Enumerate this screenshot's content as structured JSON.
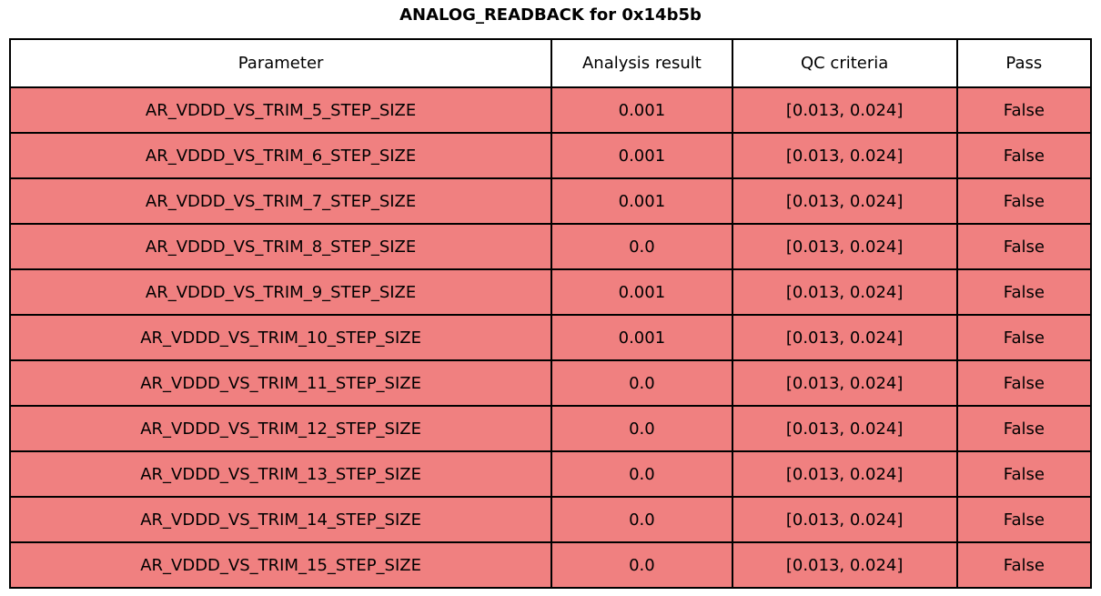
{
  "title": "ANALOG_READBACK for 0x14b5b",
  "table": {
    "columns": [
      "Parameter",
      "Analysis result",
      "QC criteria",
      "Pass"
    ],
    "rows": [
      {
        "parameter": "AR_VDDD_VS_TRIM_5_STEP_SIZE",
        "result": "0.001",
        "criteria": "[0.013, 0.024]",
        "pass": "False"
      },
      {
        "parameter": "AR_VDDD_VS_TRIM_6_STEP_SIZE",
        "result": "0.001",
        "criteria": "[0.013, 0.024]",
        "pass": "False"
      },
      {
        "parameter": "AR_VDDD_VS_TRIM_7_STEP_SIZE",
        "result": "0.001",
        "criteria": "[0.013, 0.024]",
        "pass": "False"
      },
      {
        "parameter": "AR_VDDD_VS_TRIM_8_STEP_SIZE",
        "result": "0.0",
        "criteria": "[0.013, 0.024]",
        "pass": "False"
      },
      {
        "parameter": "AR_VDDD_VS_TRIM_9_STEP_SIZE",
        "result": "0.001",
        "criteria": "[0.013, 0.024]",
        "pass": "False"
      },
      {
        "parameter": "AR_VDDD_VS_TRIM_10_STEP_SIZE",
        "result": "0.001",
        "criteria": "[0.013, 0.024]",
        "pass": "False"
      },
      {
        "parameter": "AR_VDDD_VS_TRIM_11_STEP_SIZE",
        "result": "0.0",
        "criteria": "[0.013, 0.024]",
        "pass": "False"
      },
      {
        "parameter": "AR_VDDD_VS_TRIM_12_STEP_SIZE",
        "result": "0.0",
        "criteria": "[0.013, 0.024]",
        "pass": "False"
      },
      {
        "parameter": "AR_VDDD_VS_TRIM_13_STEP_SIZE",
        "result": "0.0",
        "criteria": "[0.013, 0.024]",
        "pass": "False"
      },
      {
        "parameter": "AR_VDDD_VS_TRIM_14_STEP_SIZE",
        "result": "0.0",
        "criteria": "[0.013, 0.024]",
        "pass": "False"
      },
      {
        "parameter": "AR_VDDD_VS_TRIM_15_STEP_SIZE",
        "result": "0.0",
        "criteria": "[0.013, 0.024]",
        "pass": "False"
      }
    ]
  },
  "colors": {
    "row_bg": "#f08080",
    "header_bg": "#ffffff",
    "border": "#000000",
    "title_color": "#000000"
  },
  "chart_data": {
    "type": "table",
    "title": "ANALOG_READBACK for 0x14b5b",
    "columns": [
      "Parameter",
      "Analysis result",
      "QC criteria",
      "Pass"
    ],
    "rows": [
      [
        "AR_VDDD_VS_TRIM_5_STEP_SIZE",
        0.001,
        "[0.013, 0.024]",
        false
      ],
      [
        "AR_VDDD_VS_TRIM_6_STEP_SIZE",
        0.001,
        "[0.013, 0.024]",
        false
      ],
      [
        "AR_VDDD_VS_TRIM_7_STEP_SIZE",
        0.001,
        "[0.013, 0.024]",
        false
      ],
      [
        "AR_VDDD_VS_TRIM_8_STEP_SIZE",
        0.0,
        "[0.013, 0.024]",
        false
      ],
      [
        "AR_VDDD_VS_TRIM_9_STEP_SIZE",
        0.001,
        "[0.013, 0.024]",
        false
      ],
      [
        "AR_VDDD_VS_TRIM_10_STEP_SIZE",
        0.001,
        "[0.013, 0.024]",
        false
      ],
      [
        "AR_VDDD_VS_TRIM_11_STEP_SIZE",
        0.0,
        "[0.013, 0.024]",
        false
      ],
      [
        "AR_VDDD_VS_TRIM_12_STEP_SIZE",
        0.0,
        "[0.013, 0.024]",
        false
      ],
      [
        "AR_VDDD_VS_TRIM_13_STEP_SIZE",
        0.0,
        "[0.013, 0.024]",
        false
      ],
      [
        "AR_VDDD_VS_TRIM_14_STEP_SIZE",
        0.0,
        "[0.013, 0.024]",
        false
      ],
      [
        "AR_VDDD_VS_TRIM_15_STEP_SIZE",
        0.0,
        "[0.013, 0.024]",
        false
      ]
    ],
    "qc_criteria_range": [
      0.013,
      0.024
    ],
    "layout": {
      "header_background": "#ffffff",
      "row_background": "#f08080",
      "grid": true
    }
  }
}
